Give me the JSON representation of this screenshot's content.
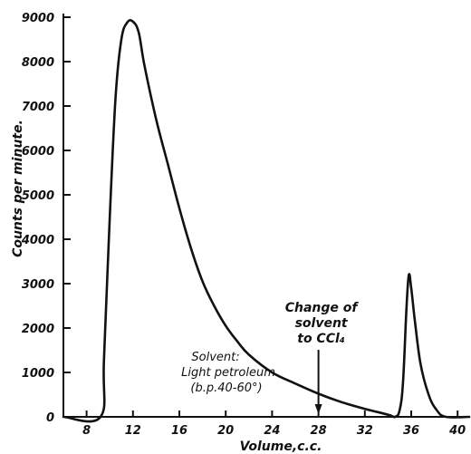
{
  "chart_data": {
    "type": "line",
    "xlabel": "Volume,c.c.",
    "ylabel": "Counts per minute.",
    "xlim": [
      6,
      41
    ],
    "ylim": [
      0,
      9000
    ],
    "x_ticks": [
      8,
      12,
      16,
      20,
      24,
      28,
      32,
      36,
      40
    ],
    "y_ticks": [
      0,
      1000,
      2000,
      3000,
      4000,
      5000,
      6000,
      7000,
      8000,
      9000
    ],
    "grid": false,
    "series": [
      {
        "x": [
          6.0,
          9.2,
          9.5,
          10.0,
          10.5,
          11.0,
          11.5,
          12.0,
          12.5,
          13.0,
          14.0,
          15.0,
          16.0,
          17.0,
          18.0,
          19.0,
          20.0,
          21.0,
          22.0,
          24.0,
          26.0,
          28.0,
          30.0,
          32.0,
          34.0,
          34.6,
          35.0,
          35.3,
          35.6,
          35.8,
          36.0,
          36.3,
          36.8,
          37.5,
          38.2,
          39.0,
          41.0
        ],
        "y": [
          0,
          0,
          1300,
          4500,
          7200,
          8500,
          8880,
          8900,
          8650,
          7900,
          6700,
          5700,
          4700,
          3800,
          3050,
          2500,
          2050,
          1700,
          1400,
          1000,
          750,
          520,
          330,
          180,
          50,
          0,
          150,
          800,
          2500,
          3200,
          2900,
          2200,
          1200,
          500,
          150,
          0,
          0
        ]
      }
    ],
    "annotations": [
      {
        "lines": [
          "Solvent:",
          "Light petroleum",
          "(b.p.40-60°)"
        ],
        "x": 21
      },
      {
        "lines": [
          "Change of",
          "solvent",
          "to CCl₄"
        ],
        "x": 28
      }
    ]
  }
}
